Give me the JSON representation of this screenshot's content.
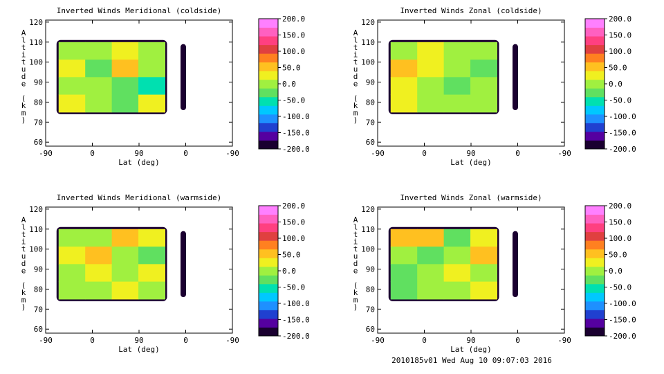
{
  "chart_data": [
    {
      "type": "heatmap",
      "title": "Inverted Winds Meridional (coldside)",
      "xlabel": "Lat (deg)",
      "ylabel": "Altitude (km)",
      "x_ticks": [
        "-90",
        "0",
        "90",
        "0",
        "-90"
      ],
      "y_ticks": [
        "60",
        "70",
        "80",
        "90",
        "100",
        "110",
        "120"
      ],
      "ylim": [
        58,
        121
      ],
      "data_region": {
        "x_range": [
          -65,
          140
        ],
        "alt_range": [
          75,
          110
        ]
      },
      "colorbar": {
        "ticks": [
          "200.0",
          "150.0",
          "100.0",
          "50.0",
          "0.0",
          "-50.0",
          "-100.0",
          "-150.0",
          "-200.0"
        ],
        "range": [
          -200,
          200
        ]
      },
      "grid": false,
      "values": [
        [
          0,
          10,
          20,
          -10
        ],
        [
          30,
          -20,
          40,
          10
        ],
        [
          10,
          0,
          -30,
          -60
        ],
        [
          20,
          10,
          -40,
          20
        ]
      ]
    },
    {
      "type": "heatmap",
      "title": "Inverted Winds Zonal (coldside)",
      "xlabel": "Lat (deg)",
      "ylabel": "Altitude (km)",
      "x_ticks": [
        "-90",
        "0",
        "90",
        "0",
        "-90"
      ],
      "y_ticks": [
        "60",
        "70",
        "80",
        "90",
        "100",
        "110",
        "120"
      ],
      "ylim": [
        58,
        121
      ],
      "data_region": {
        "x_range": [
          -65,
          140
        ],
        "alt_range": [
          75,
          110
        ]
      },
      "colorbar": {
        "ticks": [
          "200.0",
          "150.0",
          "100.0",
          "50.0",
          "0.0",
          "-50.0",
          "-100.0",
          "-150.0",
          "-200.0"
        ],
        "range": [
          -200,
          200
        ]
      },
      "grid": false,
      "values": [
        [
          10,
          20,
          -10,
          0
        ],
        [
          40,
          30,
          0,
          -20
        ],
        [
          30,
          10,
          -20,
          10
        ],
        [
          20,
          0,
          -10,
          0
        ]
      ]
    },
    {
      "type": "heatmap",
      "title": "Inverted Winds Meridional (warmside)",
      "xlabel": "Lat (deg)",
      "ylabel": "Altitude (km)",
      "x_ticks": [
        "-90",
        "0",
        "90",
        "0",
        "-90"
      ],
      "y_ticks": [
        "60",
        "70",
        "80",
        "90",
        "100",
        "110",
        "120"
      ],
      "ylim": [
        58,
        121
      ],
      "data_region": {
        "x_range": [
          -65,
          140
        ],
        "alt_range": [
          75,
          110
        ]
      },
      "colorbar": {
        "ticks": [
          "200.0",
          "150.0",
          "100.0",
          "50.0",
          "0.0",
          "-50.0",
          "-100.0",
          "-150.0",
          "-200.0"
        ],
        "range": [
          -200,
          200
        ]
      },
      "grid": false,
      "values": [
        [
          0,
          -10,
          40,
          20
        ],
        [
          20,
          40,
          10,
          -20
        ],
        [
          10,
          30,
          -10,
          20
        ],
        [
          -10,
          0,
          20,
          10
        ]
      ]
    },
    {
      "type": "heatmap",
      "title": "Inverted Winds Zonal (warmside)",
      "xlabel": "Lat (deg)",
      "ylabel": "Altitude (km)",
      "x_ticks": [
        "-90",
        "0",
        "90",
        "0",
        "-90"
      ],
      "y_ticks": [
        "60",
        "70",
        "80",
        "90",
        "100",
        "110",
        "120"
      ],
      "ylim": [
        58,
        121
      ],
      "data_region": {
        "x_range": [
          -65,
          140
        ],
        "alt_range": [
          75,
          110
        ]
      },
      "colorbar": {
        "ticks": [
          "200.0",
          "150.0",
          "100.0",
          "50.0",
          "0.0",
          "-50.0",
          "-100.0",
          "-150.0",
          "-200.0"
        ],
        "range": [
          -200,
          200
        ]
      },
      "grid": false,
      "values": [
        [
          50,
          40,
          -40,
          20
        ],
        [
          0,
          -30,
          10,
          40
        ],
        [
          -20,
          -10,
          20,
          10
        ],
        [
          -30,
          0,
          10,
          20
        ]
      ]
    }
  ],
  "colormap": [
    "#1a0030",
    "#5500a0",
    "#2040d0",
    "#1e90ff",
    "#00c8ff",
    "#00e0b0",
    "#60e060",
    "#a0f040",
    "#f0f020",
    "#ffc020",
    "#ff8020",
    "#e04040",
    "#ff4080",
    "#ff60c0",
    "#ff80ff"
  ],
  "footer": "2010185v01 Wed Aug 10 09:07:03 2016"
}
